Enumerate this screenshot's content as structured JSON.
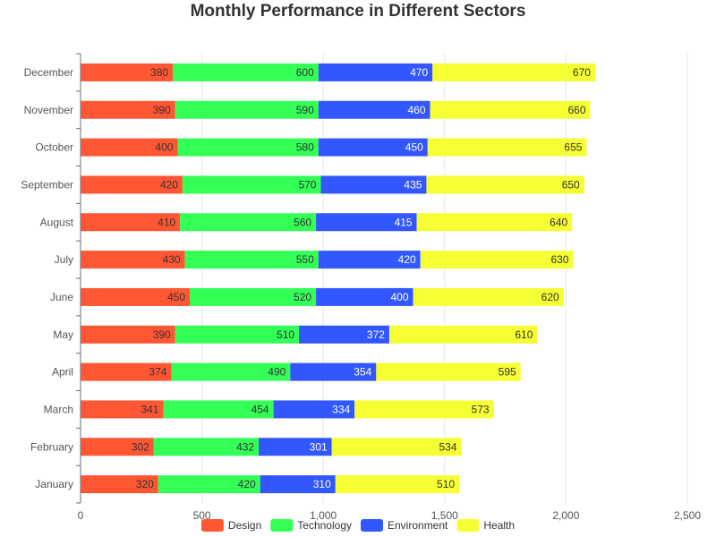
{
  "chart_data": {
    "type": "bar",
    "orientation": "horizontal",
    "stacked": true,
    "title": "Monthly Performance in Different Sectors",
    "xlabel": "",
    "ylabel": "",
    "xlim": [
      0,
      2500
    ],
    "x_ticks": [
      0,
      500,
      1000,
      1500,
      2000,
      2500
    ],
    "x_tick_labels": [
      "0",
      "500",
      "1,000",
      "1,500",
      "2,000",
      "2,500"
    ],
    "grid": "vertical",
    "legend_position": "bottom",
    "categories": [
      "January",
      "February",
      "March",
      "April",
      "May",
      "June",
      "July",
      "August",
      "September",
      "October",
      "November",
      "December"
    ],
    "series": [
      {
        "name": "Design",
        "color": "#ff5733",
        "label_color": "#333333",
        "values": [
          320,
          302,
          341,
          374,
          390,
          450,
          430,
          410,
          420,
          400,
          390,
          380
        ]
      },
      {
        "name": "Technology",
        "color": "#33ff57",
        "label_color": "#333333",
        "values": [
          420,
          432,
          454,
          490,
          510,
          520,
          550,
          560,
          570,
          580,
          590,
          600
        ]
      },
      {
        "name": "Environment",
        "color": "#3357ff",
        "label_color": "#ffffff",
        "values": [
          310,
          301,
          334,
          354,
          372,
          400,
          420,
          415,
          435,
          450,
          460,
          470
        ]
      },
      {
        "name": "Health",
        "color": "#f6ff33",
        "label_color": "#333333",
        "values": [
          510,
          534,
          573,
          595,
          610,
          620,
          630,
          640,
          650,
          655,
          660,
          670
        ]
      }
    ]
  }
}
